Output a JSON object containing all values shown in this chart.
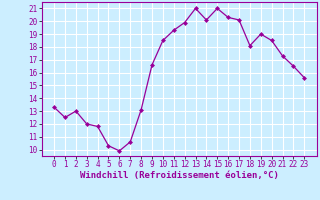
{
  "x": [
    0,
    1,
    2,
    3,
    4,
    5,
    6,
    7,
    8,
    9,
    10,
    11,
    12,
    13,
    14,
    15,
    16,
    17,
    18,
    19,
    20,
    21,
    22,
    23
  ],
  "y": [
    13.3,
    12.5,
    13.0,
    12.0,
    11.8,
    10.3,
    9.9,
    10.6,
    13.1,
    16.6,
    18.5,
    19.3,
    19.9,
    21.0,
    20.1,
    21.0,
    20.3,
    20.1,
    18.1,
    19.0,
    18.5,
    17.3,
    16.5,
    15.6
  ],
  "line_color": "#990099",
  "marker": "D",
  "marker_size": 2.0,
  "bg_color": "#cceeff",
  "grid_color": "#ffffff",
  "xlabel": "Windchill (Refroidissement éolien,°C)",
  "xlabel_color": "#990099",
  "tick_color": "#990099",
  "ylim": [
    9.5,
    21.5
  ],
  "yticks": [
    10,
    11,
    12,
    13,
    14,
    15,
    16,
    17,
    18,
    19,
    20,
    21
  ],
  "xticks": [
    0,
    1,
    2,
    3,
    4,
    5,
    6,
    7,
    8,
    9,
    10,
    11,
    12,
    13,
    14,
    15,
    16,
    17,
    18,
    19,
    20,
    21,
    22,
    23
  ],
  "figsize": [
    3.2,
    2.0
  ],
  "dpi": 100,
  "tick_fontsize": 5.5,
  "xlabel_fontsize": 6.5,
  "linewidth": 0.9
}
